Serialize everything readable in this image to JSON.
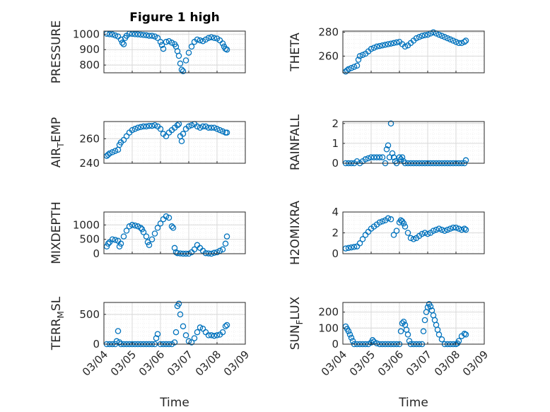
{
  "figure": {
    "title": "Figure 1 high"
  },
  "style": {
    "marker_color": "#0072BD",
    "axis_color": "#262626",
    "grid_color": "#d9d9d9"
  },
  "chart_data": [
    {
      "type": "scatter",
      "ylabel": "PRESSURE",
      "title": "Figure 1 high",
      "ylim": [
        750,
        1020
      ],
      "yticks": [
        800,
        900,
        1000
      ],
      "xlim": [
        0,
        5
      ],
      "xticks": [],
      "grid": true,
      "x": [
        0.1,
        0.2,
        0.3,
        0.4,
        0.5,
        0.6,
        0.65,
        0.7,
        0.75,
        0.8,
        0.9,
        1.0,
        1.1,
        1.2,
        1.3,
        1.4,
        1.5,
        1.6,
        1.7,
        1.8,
        1.9,
        2.0,
        2.05,
        2.1,
        2.2,
        2.3,
        2.4,
        2.5,
        2.55,
        2.6,
        2.65,
        2.7,
        2.75,
        2.8,
        2.9,
        3.0,
        3.1,
        3.2,
        3.3,
        3.4,
        3.5,
        3.6,
        3.7,
        3.8,
        3.9,
        4.0,
        4.1,
        4.2,
        4.25,
        4.3,
        4.35
      ],
      "y": [
        1003,
        1000,
        998,
        992,
        985,
        965,
        945,
        935,
        975,
        990,
        1003,
        1002,
        1000,
        999,
        997,
        995,
        993,
        990,
        990,
        985,
        975,
        950,
        930,
        905,
        950,
        955,
        945,
        935,
        920,
        890,
        860,
        810,
        770,
        760,
        830,
        880,
        920,
        950,
        965,
        960,
        955,
        965,
        975,
        980,
        975,
        972,
        960,
        940,
        920,
        905,
        900
      ]
    },
    {
      "type": "scatter",
      "ylabel": "THETA",
      "ylim": [
        246,
        281
      ],
      "yticks": [
        260,
        280
      ],
      "xlim": [
        0,
        5
      ],
      "xticks": [],
      "grid": true,
      "x": [
        0.1,
        0.15,
        0.2,
        0.3,
        0.4,
        0.5,
        0.55,
        0.6,
        0.7,
        0.8,
        0.9,
        1.0,
        1.1,
        1.2,
        1.3,
        1.4,
        1.5,
        1.6,
        1.7,
        1.8,
        1.9,
        2.0,
        2.1,
        2.2,
        2.3,
        2.4,
        2.5,
        2.6,
        2.7,
        2.8,
        2.9,
        3.0,
        3.1,
        3.2,
        3.3,
        3.4,
        3.5,
        3.6,
        3.7,
        3.8,
        3.9,
        4.0,
        4.1,
        4.2,
        4.3,
        4.35
      ],
      "y": [
        247,
        248,
        249,
        250,
        251,
        252,
        257,
        260,
        261,
        262,
        264,
        266,
        267,
        268,
        268.5,
        269,
        269.5,
        270,
        270.5,
        271,
        271.5,
        272,
        270,
        268,
        269,
        271,
        273,
        275,
        276,
        277,
        277.5,
        278,
        279,
        280,
        279,
        278,
        277,
        276,
        275,
        274,
        273,
        272,
        271,
        271,
        272,
        273
      ]
    },
    {
      "type": "scatter",
      "ylabel": "AIR_TEMP",
      "ylim": [
        240,
        274
      ],
      "yticks": [
        240,
        260
      ],
      "xlim": [
        0,
        5
      ],
      "xticks": [],
      "grid": true,
      "x": [
        0.1,
        0.15,
        0.2,
        0.3,
        0.4,
        0.5,
        0.55,
        0.6,
        0.7,
        0.8,
        0.9,
        1.0,
        1.1,
        1.2,
        1.3,
        1.4,
        1.5,
        1.6,
        1.7,
        1.8,
        1.9,
        2.0,
        2.1,
        2.2,
        2.3,
        2.4,
        2.5,
        2.6,
        2.65,
        2.7,
        2.75,
        2.8,
        2.9,
        3.0,
        3.1,
        3.2,
        3.3,
        3.4,
        3.5,
        3.6,
        3.7,
        3.8,
        3.9,
        4.0,
        4.1,
        4.2,
        4.3,
        4.35
      ],
      "y": [
        246,
        247,
        248,
        249,
        250,
        251,
        255,
        257,
        259,
        262,
        265,
        267,
        268,
        269,
        269.5,
        270,
        270,
        270.5,
        270.5,
        271,
        270,
        268,
        264,
        262,
        265,
        267,
        269,
        271,
        272,
        262,
        258,
        264,
        268,
        270,
        271,
        272,
        270,
        269,
        270,
        270,
        269,
        269,
        269,
        268,
        267,
        266,
        265,
        265
      ]
    },
    {
      "type": "scatter",
      "ylabel": "RAINFALL",
      "ylim": [
        0,
        2.1
      ],
      "yticks": [
        0,
        1,
        2
      ],
      "xlim": [
        0,
        5
      ],
      "xticks": [],
      "grid": true,
      "x": [
        0.1,
        0.2,
        0.3,
        0.4,
        0.5,
        0.6,
        0.7,
        0.8,
        0.9,
        1.0,
        1.1,
        1.2,
        1.3,
        1.4,
        1.5,
        1.55,
        1.6,
        1.65,
        1.7,
        1.75,
        1.8,
        1.85,
        1.9,
        2.0,
        2.05,
        2.1,
        2.15,
        2.2,
        2.3,
        2.4,
        2.5,
        2.6,
        2.7,
        2.8,
        2.9,
        3.0,
        3.1,
        3.2,
        3.3,
        3.4,
        3.5,
        3.6,
        3.7,
        3.8,
        3.9,
        4.0,
        4.1,
        4.2,
        4.3,
        4.35
      ],
      "y": [
        0,
        0,
        0,
        0,
        0.1,
        0,
        0.1,
        0.2,
        0.25,
        0.3,
        0.3,
        0.3,
        0.3,
        0.3,
        0,
        0.7,
        0.9,
        0.3,
        2.0,
        0.5,
        0.3,
        0.1,
        0,
        0.3,
        0.2,
        0.3,
        0.1,
        0,
        0,
        0,
        0,
        0,
        0,
        0,
        0,
        0,
        0,
        0,
        0,
        0,
        0,
        0,
        0,
        0,
        0,
        0,
        0,
        0,
        0,
        0.15
      ]
    },
    {
      "type": "scatter",
      "ylabel": "MIXDEPTH",
      "ylim": [
        0,
        1450
      ],
      "yticks": [
        0,
        500,
        1000
      ],
      "xlim": [
        0,
        5
      ],
      "xticks": [],
      "grid": true,
      "x": [
        0.1,
        0.15,
        0.2,
        0.3,
        0.4,
        0.5,
        0.55,
        0.6,
        0.7,
        0.8,
        0.9,
        1.0,
        1.1,
        1.2,
        1.3,
        1.35,
        1.4,
        1.5,
        1.55,
        1.6,
        1.7,
        1.8,
        1.9,
        2.0,
        2.1,
        2.2,
        2.3,
        2.4,
        2.45,
        2.5,
        2.55,
        2.6,
        2.7,
        2.8,
        2.9,
        3.0,
        3.1,
        3.2,
        3.3,
        3.4,
        3.5,
        3.6,
        3.7,
        3.8,
        3.9,
        4.0,
        4.1,
        4.2,
        4.3,
        4.35
      ],
      "y": [
        250,
        350,
        400,
        500,
        480,
        450,
        250,
        350,
        600,
        800,
        950,
        1000,
        980,
        950,
        900,
        850,
        750,
        600,
        400,
        300,
        500,
        700,
        900,
        1050,
        1200,
        1300,
        1250,
        950,
        900,
        200,
        50,
        20,
        10,
        0,
        0,
        0,
        50,
        150,
        300,
        200,
        100,
        20,
        10,
        0,
        30,
        50,
        100,
        150,
        350,
        600
      ]
    },
    {
      "type": "scatter",
      "ylabel": "H2OMIXRA",
      "ylim": [
        0,
        4
      ],
      "yticks": [
        0,
        2,
        4
      ],
      "xlim": [
        0,
        5
      ],
      "xticks": [],
      "grid": true,
      "x": [
        0.1,
        0.2,
        0.3,
        0.4,
        0.5,
        0.6,
        0.7,
        0.8,
        0.9,
        1.0,
        1.1,
        1.2,
        1.3,
        1.4,
        1.5,
        1.6,
        1.7,
        1.8,
        1.9,
        2.0,
        2.05,
        2.1,
        2.15,
        2.2,
        2.3,
        2.4,
        2.5,
        2.6,
        2.7,
        2.8,
        2.9,
        3.0,
        3.1,
        3.2,
        3.3,
        3.4,
        3.5,
        3.6,
        3.7,
        3.8,
        3.9,
        4.0,
        4.1,
        4.2,
        4.3,
        4.35
      ],
      "y": [
        0.5,
        0.55,
        0.6,
        0.65,
        0.7,
        1.0,
        1.4,
        1.8,
        2.1,
        2.4,
        2.6,
        2.8,
        3.0,
        3.1,
        3.2,
        3.4,
        3.3,
        1.8,
        2.2,
        3.0,
        3.2,
        3.1,
        2.9,
        2.6,
        2.0,
        1.5,
        1.4,
        1.5,
        1.7,
        1.9,
        2.0,
        1.9,
        2.0,
        2.2,
        2.3,
        2.4,
        2.3,
        2.2,
        2.3,
        2.4,
        2.5,
        2.5,
        2.4,
        2.3,
        2.4,
        2.3
      ]
    },
    {
      "type": "scatter",
      "ylabel": "TERR_MSL",
      "ylim": [
        0,
        700
      ],
      "yticks": [
        0,
        500
      ],
      "xlim": [
        0,
        5
      ],
      "xticks": [
        "03/04",
        "03/05",
        "03/06",
        "03/07",
        "03/08",
        "03/09"
      ],
      "xticks_pos": [
        0,
        1,
        2,
        3,
        4,
        5
      ],
      "xlabel": "Time",
      "grid": true,
      "x": [
        0.1,
        0.2,
        0.3,
        0.4,
        0.45,
        0.5,
        0.55,
        0.6,
        0.7,
        0.8,
        0.9,
        1.0,
        1.1,
        1.2,
        1.3,
        1.4,
        1.5,
        1.6,
        1.7,
        1.8,
        1.85,
        1.9,
        2.0,
        2.1,
        2.2,
        2.3,
        2.4,
        2.5,
        2.55,
        2.6,
        2.65,
        2.7,
        2.8,
        2.9,
        3.0,
        3.1,
        3.2,
        3.3,
        3.4,
        3.5,
        3.6,
        3.7,
        3.8,
        3.9,
        4.0,
        4.1,
        4.2,
        4.3,
        4.35
      ],
      "y": [
        0,
        0,
        0,
        0,
        50,
        220,
        30,
        0,
        0,
        0,
        0,
        0,
        0,
        0,
        0,
        0,
        0,
        0,
        0,
        0,
        100,
        170,
        0,
        0,
        0,
        0,
        0,
        30,
        200,
        640,
        680,
        500,
        300,
        150,
        50,
        30,
        100,
        200,
        280,
        260,
        200,
        150,
        150,
        140,
        150,
        160,
        200,
        300,
        320
      ]
    },
    {
      "type": "scatter",
      "ylabel": "SUN_FLUX",
      "ylim": [
        0,
        260
      ],
      "yticks": [
        0,
        100,
        200
      ],
      "xlim": [
        0,
        5
      ],
      "xticks": [
        "03/04",
        "03/05",
        "03/06",
        "03/07",
        "03/08",
        "03/09"
      ],
      "xticks_pos": [
        0,
        1,
        2,
        3,
        4,
        5
      ],
      "xlabel": "Time",
      "grid": true,
      "x": [
        0.1,
        0.15,
        0.2,
        0.25,
        0.3,
        0.35,
        0.4,
        0.5,
        0.6,
        0.7,
        0.8,
        0.9,
        1.0,
        1.05,
        1.1,
        1.2,
        1.3,
        1.4,
        1.5,
        1.6,
        1.7,
        1.8,
        1.9,
        2.0,
        2.05,
        2.1,
        2.15,
        2.2,
        2.25,
        2.3,
        2.35,
        2.4,
        2.5,
        2.6,
        2.7,
        2.8,
        2.85,
        2.9,
        2.95,
        3.0,
        3.05,
        3.1,
        3.15,
        3.2,
        3.25,
        3.3,
        3.35,
        3.4,
        3.5,
        3.6,
        3.7,
        3.8,
        3.9,
        4.0,
        4.05,
        4.1,
        4.2,
        4.3,
        4.35
      ],
      "y": [
        110,
        95,
        80,
        60,
        40,
        20,
        0,
        0,
        0,
        0,
        0,
        0,
        10,
        25,
        15,
        5,
        0,
        0,
        0,
        0,
        0,
        0,
        0,
        0,
        80,
        130,
        140,
        120,
        90,
        60,
        20,
        0,
        0,
        0,
        0,
        0,
        80,
        150,
        200,
        230,
        250,
        235,
        210,
        180,
        150,
        120,
        90,
        60,
        30,
        0,
        0,
        0,
        0,
        0,
        5,
        20,
        50,
        65,
        60
      ]
    }
  ]
}
